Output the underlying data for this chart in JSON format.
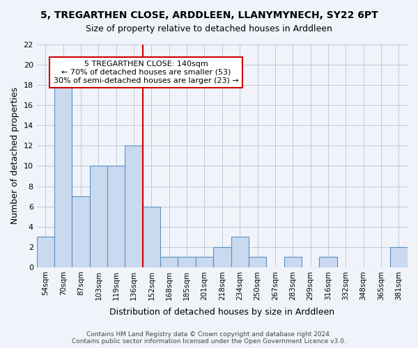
{
  "title": "5, TREGARTHEN CLOSE, ARDDLEEN, LLANYMYNECH, SY22 6PT",
  "subtitle": "Size of property relative to detached houses in Arddleen",
  "xlabel": "Distribution of detached houses by size in Arddleen",
  "ylabel": "Number of detached properties",
  "categories": [
    "54sqm",
    "70sqm",
    "87sqm",
    "103sqm",
    "119sqm",
    "136sqm",
    "152sqm",
    "168sqm",
    "185sqm",
    "201sqm",
    "218sqm",
    "234sqm",
    "250sqm",
    "267sqm",
    "283sqm",
    "299sqm",
    "316sqm",
    "332sqm",
    "348sqm",
    "365sqm",
    "381sqm"
  ],
  "values": [
    3,
    18,
    7,
    10,
    10,
    12,
    6,
    1,
    1,
    1,
    2,
    3,
    1,
    0,
    1,
    0,
    1,
    0,
    0,
    0,
    2
  ],
  "bar_color": "#c9d9f0",
  "bar_edge_color": "#5a8fc0",
  "vline_x": 5.5,
  "vline_color": "#cc0000",
  "annotation_text": "5 TREGARTHEN CLOSE: 140sqm\n← 70% of detached houses are smaller (53)\n30% of semi-detached houses are larger (23) →",
  "annotation_box_color": "#ffffff",
  "annotation_box_edge": "#cc0000",
  "ylim": [
    0,
    22
  ],
  "yticks": [
    0,
    2,
    4,
    6,
    8,
    10,
    12,
    14,
    16,
    18,
    20,
    22
  ],
  "footer": "Contains HM Land Registry data © Crown copyright and database right 2024.\nContains public sector information licensed under the Open Government Licence v3.0.",
  "bg_color": "#f0f4fa",
  "grid_color": "#c0c8d8"
}
